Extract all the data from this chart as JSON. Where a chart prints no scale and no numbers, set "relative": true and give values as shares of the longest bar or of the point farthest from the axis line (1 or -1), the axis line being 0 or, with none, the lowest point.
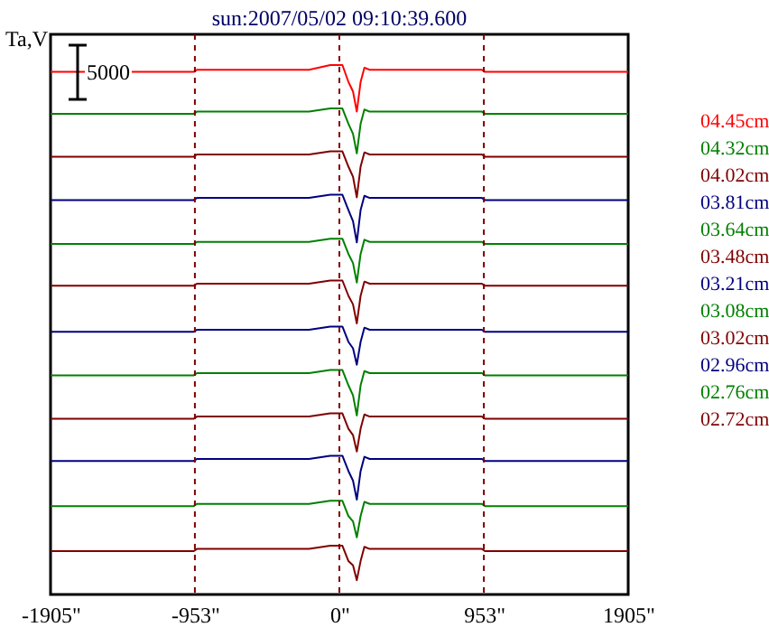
{
  "chart_data": {
    "type": "line",
    "title": "sun:2007/05/02 09:10:39.600",
    "ylabel": "Ta,V",
    "relative": true,
    "x": [
      -1905,
      -960,
      -940,
      -200,
      -60,
      20,
      60,
      90,
      115,
      140,
      165,
      200,
      940,
      960,
      1905
    ],
    "xlim": [
      -1905,
      1905
    ],
    "xticks": [
      {
        "value": -1905,
        "label": "-1905\""
      },
      {
        "value": -953,
        "label": "-953\""
      },
      {
        "value": 0,
        "label": "0\""
      },
      {
        "value": 953,
        "label": "953\""
      },
      {
        "value": 1905,
        "label": "1905\""
      }
    ],
    "series": [
      {
        "name": "04.45cm",
        "color": "#ff0000",
        "values": [
          0.987,
          0.987,
          0.991,
          0.991,
          1,
          1,
          0.968,
          0.95,
          0.912,
          0.968,
          0.995,
          0.991,
          0.991,
          0.987,
          0.987
        ]
      },
      {
        "name": "04.32cm",
        "color": "#008000",
        "values": [
          0.908,
          0.908,
          0.912,
          0.912,
          0.918,
          0.918,
          0.889,
          0.87,
          0.833,
          0.889,
          0.916,
          0.912,
          0.912,
          0.908,
          0.908
        ]
      },
      {
        "name": "04.02cm",
        "color": "#800000",
        "values": [
          0.827,
          0.827,
          0.831,
          0.831,
          0.837,
          0.837,
          0.808,
          0.789,
          0.75,
          0.808,
          0.835,
          0.831,
          0.831,
          0.827,
          0.827
        ]
      },
      {
        "name": "03.81cm",
        "color": "#000080",
        "values": [
          0.745,
          0.745,
          0.749,
          0.749,
          0.755,
          0.755,
          0.726,
          0.705,
          0.665,
          0.726,
          0.753,
          0.749,
          0.749,
          0.745,
          0.745
        ]
      },
      {
        "name": "03.64cm",
        "color": "#008000",
        "values": [
          0.662,
          0.662,
          0.666,
          0.666,
          0.672,
          0.672,
          0.643,
          0.626,
          0.589,
          0.643,
          0.67,
          0.666,
          0.666,
          0.662,
          0.662
        ]
      },
      {
        "name": "03.48cm",
        "color": "#800000",
        "values": [
          0.583,
          0.583,
          0.587,
          0.587,
          0.593,
          0.593,
          0.564,
          0.548,
          0.512,
          0.564,
          0.591,
          0.587,
          0.587,
          0.583,
          0.583
        ]
      },
      {
        "name": "03.21cm",
        "color": "#000080",
        "values": [
          0.496,
          0.496,
          0.5,
          0.5,
          0.506,
          0.506,
          0.477,
          0.465,
          0.434,
          0.477,
          0.504,
          0.5,
          0.5,
          0.496,
          0.496
        ]
      },
      {
        "name": "03.08cm",
        "color": "#008000",
        "values": [
          0.414,
          0.414,
          0.418,
          0.418,
          0.424,
          0.424,
          0.395,
          0.376,
          0.338,
          0.395,
          0.422,
          0.418,
          0.418,
          0.414,
          0.414
        ]
      },
      {
        "name": "03.02cm",
        "color": "#800000",
        "values": [
          0.332,
          0.332,
          0.336,
          0.336,
          0.342,
          0.342,
          0.313,
          0.301,
          0.27,
          0.313,
          0.34,
          0.336,
          0.336,
          0.332,
          0.332
        ]
      },
      {
        "name": "02.96cm",
        "color": "#000080",
        "values": [
          0.252,
          0.252,
          0.256,
          0.256,
          0.262,
          0.262,
          0.233,
          0.215,
          0.179,
          0.233,
          0.26,
          0.256,
          0.256,
          0.252,
          0.252
        ]
      },
      {
        "name": "02.76cm",
        "color": "#008000",
        "values": [
          0.167,
          0.167,
          0.171,
          0.171,
          0.177,
          0.177,
          0.148,
          0.138,
          0.108,
          0.148,
          0.175,
          0.171,
          0.171,
          0.167,
          0.167
        ]
      },
      {
        "name": "02.72cm",
        "color": "#800000",
        "values": [
          0.082,
          0.082,
          0.086,
          0.086,
          0.092,
          0.092,
          0.063,
          0.055,
          0.027,
          0.063,
          0.09,
          0.086,
          0.086,
          0.082,
          0.082
        ]
      }
    ],
    "ref_lines": [
      {
        "axis": "x",
        "value": -953,
        "color": "#800000",
        "line_style": "dashed"
      },
      {
        "axis": "x",
        "value": 0,
        "color": "#800000",
        "line_style": "dashed"
      },
      {
        "axis": "x",
        "value": 953,
        "color": "#800000",
        "line_style": "dashed"
      }
    ],
    "annotations": [
      "5000"
    ],
    "legend": "right",
    "grid": false,
    "line_style": "solid"
  }
}
